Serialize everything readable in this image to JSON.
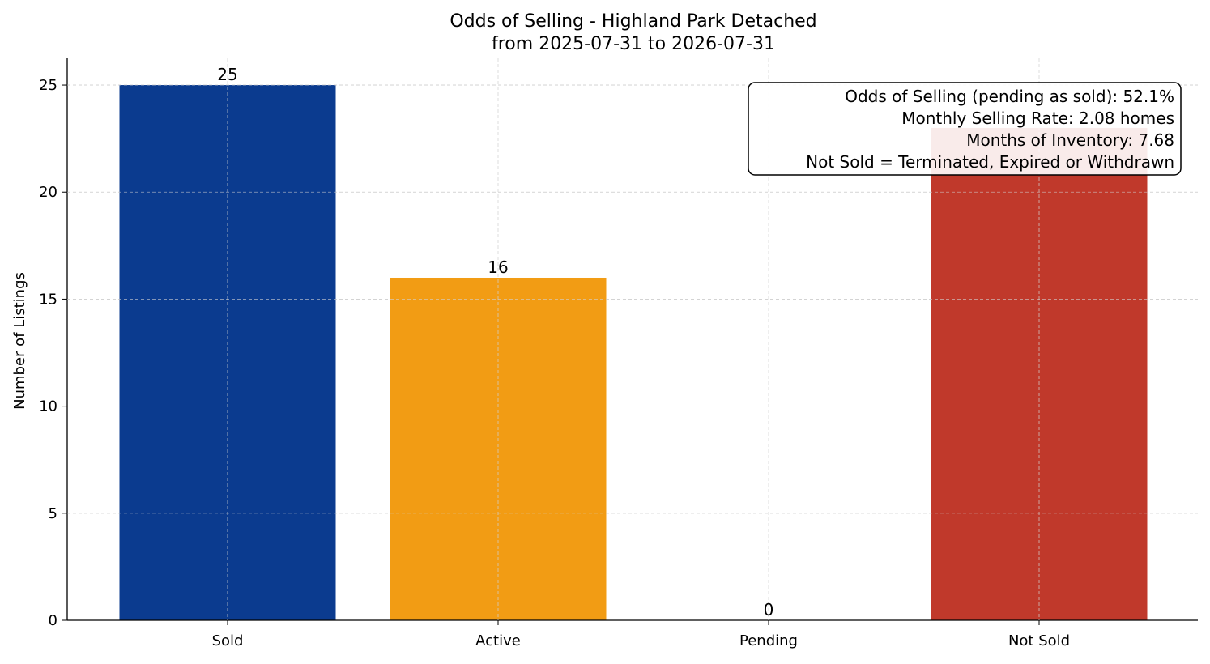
{
  "chart_data": {
    "type": "bar",
    "title": "Odds of Selling - Highland Park Detached",
    "subtitle": "from 2025-07-31 to 2026-07-31",
    "xlabel": "",
    "ylabel": "Number of Listings",
    "categories": [
      "Sold",
      "Active",
      "Pending",
      "Not Sold"
    ],
    "values": [
      25,
      16,
      0,
      23
    ],
    "data_labels": [
      "25",
      "16",
      "0",
      ""
    ],
    "colors": [
      "#0b3b8f",
      "#f29c14",
      "#2e7d32",
      "#c0392b"
    ],
    "ylim": [
      0,
      26.25
    ],
    "yticks": [
      0,
      5,
      10,
      15,
      20,
      25
    ],
    "grid": true,
    "annotation": {
      "placement": "top-right",
      "lines": [
        "Odds of Selling (pending as sold): 52.1%",
        "Monthly Selling Rate: 2.08 homes",
        "Months of Inventory: 7.68",
        "Not Sold = Terminated, Expired or Withdrawn"
      ]
    }
  }
}
